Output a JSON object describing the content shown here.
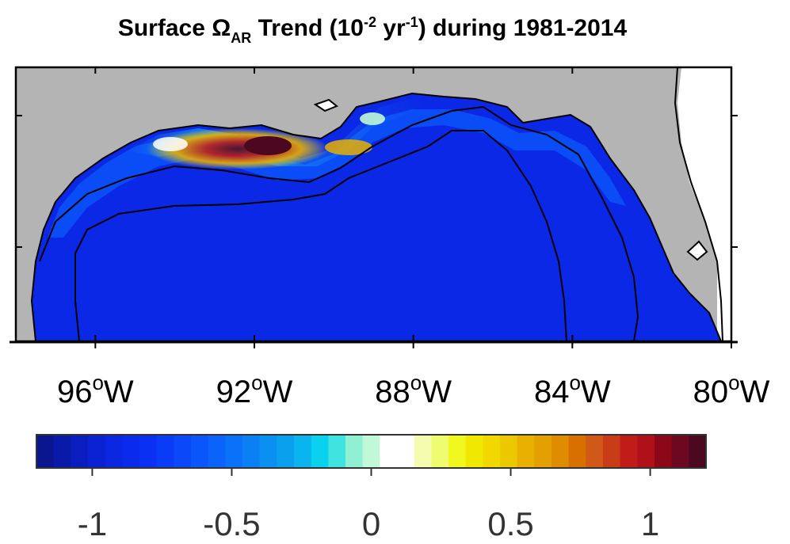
{
  "title": {
    "prefix": "Surface Ω",
    "sub": "AR",
    "mid": " Trend (10",
    "sup1": "-2",
    "mid2": " yr",
    "sup2": "-1",
    "suffix": ") during 1981-2014"
  },
  "map": {
    "lon_ticks": [
      {
        "value": -96,
        "num": "96",
        "deg": "o",
        "dir": "W"
      },
      {
        "value": -92,
        "num": "92",
        "deg": "o",
        "dir": "W"
      },
      {
        "value": -88,
        "num": "88",
        "deg": "o",
        "dir": "W"
      },
      {
        "value": -84,
        "num": "84",
        "deg": "o",
        "dir": "W"
      },
      {
        "value": -80,
        "num": "80",
        "deg": "o",
        "dir": "W"
      }
    ],
    "lon_range": [
      -98,
      -80
    ],
    "land_color": "#b4b4b4",
    "ocean_color": "#0a28e6"
  },
  "colorbar": {
    "range": [
      -1.2,
      1.2
    ],
    "ticks": [
      {
        "value": -1,
        "label": "-1"
      },
      {
        "value": -0.5,
        "label": "-0.5"
      },
      {
        "value": 0,
        "label": "0"
      },
      {
        "value": 0.5,
        "label": "0.5"
      },
      {
        "value": 1,
        "label": "1"
      }
    ],
    "colors": [
      "#0a1690",
      "#0a1aa8",
      "#0a1ec0",
      "#0a22d2",
      "#0a26e0",
      "#0a2aec",
      "#0a30f4",
      "#0a3cf8",
      "#0a48fa",
      "#0a56fa",
      "#0a64fa",
      "#0a72f8",
      "#0a80f4",
      "#0a90f0",
      "#0aa0ee",
      "#0ab4ee",
      "#0ad2ee",
      "#40e2e0",
      "#90f0d4",
      "#c0f8d8",
      "#ffffff",
      "#ffffff",
      "#f4fcb0",
      "#f0fc70",
      "#f0f820",
      "#f0e800",
      "#f0d800",
      "#ecc800",
      "#e8b000",
      "#e4a000",
      "#e08c00",
      "#d87000",
      "#d05818",
      "#c83c18",
      "#c01c18",
      "#b01018",
      "#8c0818",
      "#6c0820",
      "#4c0820"
    ]
  }
}
